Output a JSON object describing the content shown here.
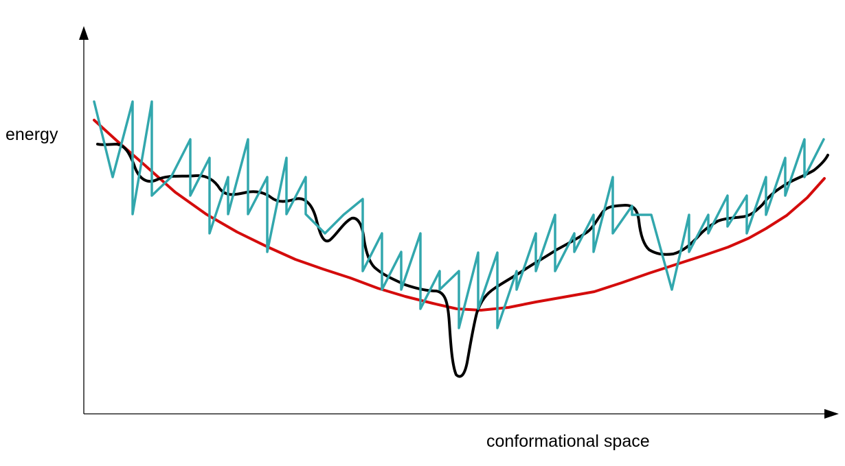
{
  "labels": {
    "y_axis": "energy",
    "x_axis": "conformational space"
  },
  "colors": {
    "axis": "#000000",
    "black_curve": "#000000",
    "red_curve": "#d40c0c",
    "teal_curve": "#32a7ad"
  }
}
